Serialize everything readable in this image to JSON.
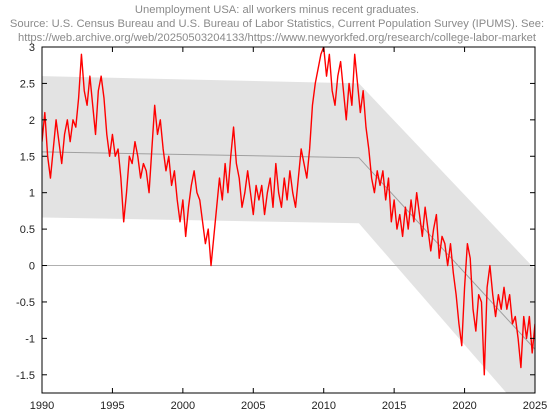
{
  "title": {
    "line1": "Unemployment USA: all workers minus recent graduates.",
    "line2": "Source: U.S. Census Bureau and U.S. Bureau of Labor Statistics, Current Population Survey (IPUMS). See:",
    "line3": "https://web.archive.org/web/20250503204133/https://www.newyorkfed.org/research/college-labor-market"
  },
  "colors": {
    "series": "#ff0000",
    "trend": "#a0a0a0",
    "band": "#e3e3e3",
    "zero_line": "#b0b0b0",
    "axis": "#000000"
  },
  "chart_data": {
    "type": "line",
    "title": "Unemployment USA: all workers minus recent graduates.",
    "xlim": [
      1990,
      2025
    ],
    "ylim": [
      -1.75,
      3
    ],
    "x_ticks": [
      1990,
      1995,
      2000,
      2005,
      2010,
      2015,
      2020,
      2025
    ],
    "y_ticks": [
      -1.5,
      -1,
      -0.5,
      0,
      0.5,
      1,
      1.5,
      2,
      2.5,
      3
    ],
    "x_tick_labels": [
      "1990",
      "1995",
      "2000",
      "2005",
      "2010",
      "2015",
      "2020",
      "2025"
    ],
    "y_tick_labels": [
      "-1.5",
      "-1",
      "-0.5",
      "0",
      "0.5",
      "1",
      "1.5",
      "2",
      "2.5",
      "3"
    ],
    "grid": false,
    "series": [
      {
        "values": [
          [
            1990.0,
            1.7
          ],
          [
            1990.2,
            2.1
          ],
          [
            1990.4,
            1.5
          ],
          [
            1990.6,
            1.2
          ],
          [
            1990.8,
            1.6
          ],
          [
            1991.0,
            2.0
          ],
          [
            1991.2,
            1.7
          ],
          [
            1991.4,
            1.4
          ],
          [
            1991.6,
            1.8
          ],
          [
            1991.8,
            2.0
          ],
          [
            1992.0,
            1.7
          ],
          [
            1992.2,
            2.0
          ],
          [
            1992.4,
            1.9
          ],
          [
            1992.6,
            2.3
          ],
          [
            1992.8,
            2.9
          ],
          [
            1993.0,
            2.4
          ],
          [
            1993.2,
            2.2
          ],
          [
            1993.4,
            2.6
          ],
          [
            1993.6,
            2.2
          ],
          [
            1993.8,
            1.8
          ],
          [
            1994.0,
            2.4
          ],
          [
            1994.2,
            2.6
          ],
          [
            1994.4,
            2.3
          ],
          [
            1994.6,
            1.8
          ],
          [
            1994.8,
            1.5
          ],
          [
            1995.0,
            1.8
          ],
          [
            1995.2,
            1.5
          ],
          [
            1995.4,
            1.6
          ],
          [
            1995.6,
            1.2
          ],
          [
            1995.8,
            0.6
          ],
          [
            1996.0,
            1.0
          ],
          [
            1996.2,
            1.5
          ],
          [
            1996.4,
            1.4
          ],
          [
            1996.6,
            1.7
          ],
          [
            1996.8,
            1.5
          ],
          [
            1997.0,
            1.2
          ],
          [
            1997.2,
            1.4
          ],
          [
            1997.4,
            1.3
          ],
          [
            1997.6,
            1.0
          ],
          [
            1997.8,
            1.6
          ],
          [
            1998.0,
            2.2
          ],
          [
            1998.2,
            1.8
          ],
          [
            1998.4,
            2.0
          ],
          [
            1998.6,
            1.6
          ],
          [
            1998.8,
            1.3
          ],
          [
            1999.0,
            1.5
          ],
          [
            1999.2,
            1.1
          ],
          [
            1999.4,
            1.3
          ],
          [
            1999.6,
            0.9
          ],
          [
            1999.8,
            0.6
          ],
          [
            2000.0,
            0.9
          ],
          [
            2000.2,
            0.4
          ],
          [
            2000.4,
            0.8
          ],
          [
            2000.6,
            1.1
          ],
          [
            2000.8,
            1.3
          ],
          [
            2001.0,
            1.0
          ],
          [
            2001.2,
            0.9
          ],
          [
            2001.4,
            0.6
          ],
          [
            2001.6,
            0.3
          ],
          [
            2001.8,
            0.5
          ],
          [
            2002.0,
            0.0
          ],
          [
            2002.2,
            0.4
          ],
          [
            2002.4,
            0.8
          ],
          [
            2002.6,
            1.2
          ],
          [
            2002.8,
            0.9
          ],
          [
            2003.0,
            1.4
          ],
          [
            2003.2,
            1.0
          ],
          [
            2003.4,
            1.5
          ],
          [
            2003.6,
            1.9
          ],
          [
            2003.8,
            1.4
          ],
          [
            2004.0,
            1.2
          ],
          [
            2004.2,
            0.8
          ],
          [
            2004.4,
            1.0
          ],
          [
            2004.6,
            1.3
          ],
          [
            2004.8,
            1.0
          ],
          [
            2005.0,
            0.7
          ],
          [
            2005.2,
            1.1
          ],
          [
            2005.4,
            0.9
          ],
          [
            2005.6,
            1.1
          ],
          [
            2005.8,
            0.7
          ],
          [
            2006.0,
            1.0
          ],
          [
            2006.2,
            1.2
          ],
          [
            2006.4,
            0.8
          ],
          [
            2006.6,
            1.4
          ],
          [
            2006.8,
            1.0
          ],
          [
            2007.0,
            0.8
          ],
          [
            2007.2,
            1.2
          ],
          [
            2007.4,
            0.9
          ],
          [
            2007.6,
            1.3
          ],
          [
            2007.8,
            1.0
          ],
          [
            2008.0,
            0.8
          ],
          [
            2008.2,
            1.2
          ],
          [
            2008.4,
            1.6
          ],
          [
            2008.6,
            1.4
          ],
          [
            2008.8,
            1.2
          ],
          [
            2009.0,
            1.6
          ],
          [
            2009.2,
            2.2
          ],
          [
            2009.4,
            2.5
          ],
          [
            2009.6,
            2.7
          ],
          [
            2009.8,
            2.9
          ],
          [
            2010.0,
            3.0
          ],
          [
            2010.2,
            2.6
          ],
          [
            2010.4,
            2.9
          ],
          [
            2010.6,
            2.4
          ],
          [
            2010.8,
            2.2
          ],
          [
            2011.0,
            2.6
          ],
          [
            2011.2,
            2.8
          ],
          [
            2011.4,
            2.4
          ],
          [
            2011.6,
            2.0
          ],
          [
            2011.8,
            2.5
          ],
          [
            2012.0,
            2.2
          ],
          [
            2012.2,
            2.9
          ],
          [
            2012.4,
            2.5
          ],
          [
            2012.6,
            2.1
          ],
          [
            2012.8,
            2.4
          ],
          [
            2013.0,
            1.9
          ],
          [
            2013.2,
            1.6
          ],
          [
            2013.4,
            1.2
          ],
          [
            2013.6,
            1.0
          ],
          [
            2013.8,
            1.3
          ],
          [
            2014.0,
            1.1
          ],
          [
            2014.2,
            1.3
          ],
          [
            2014.4,
            0.9
          ],
          [
            2014.6,
            1.2
          ],
          [
            2014.8,
            0.6
          ],
          [
            2015.0,
            0.9
          ],
          [
            2015.2,
            0.5
          ],
          [
            2015.4,
            0.7
          ],
          [
            2015.6,
            0.4
          ],
          [
            2015.8,
            0.8
          ],
          [
            2016.0,
            0.5
          ],
          [
            2016.2,
            0.9
          ],
          [
            2016.4,
            0.6
          ],
          [
            2016.6,
            1.0
          ],
          [
            2016.8,
            0.7
          ],
          [
            2017.0,
            0.4
          ],
          [
            2017.2,
            0.8
          ],
          [
            2017.4,
            0.5
          ],
          [
            2017.6,
            0.2
          ],
          [
            2017.8,
            0.5
          ],
          [
            2018.0,
            0.7
          ],
          [
            2018.2,
            0.1
          ],
          [
            2018.4,
            0.4
          ],
          [
            2018.6,
            0.3
          ],
          [
            2018.8,
            0.0
          ],
          [
            2019.0,
            0.3
          ],
          [
            2019.2,
            -0.1
          ],
          [
            2019.4,
            -0.4
          ],
          [
            2019.6,
            -0.8
          ],
          [
            2019.8,
            -1.1
          ],
          [
            2020.0,
            -0.3
          ],
          [
            2020.2,
            0.3
          ],
          [
            2020.4,
            0.1
          ],
          [
            2020.6,
            -0.6
          ],
          [
            2020.8,
            -0.9
          ],
          [
            2021.0,
            -0.4
          ],
          [
            2021.2,
            -0.5
          ],
          [
            2021.4,
            -1.5
          ],
          [
            2021.6,
            -0.3
          ],
          [
            2021.8,
            0.0
          ],
          [
            2022.0,
            -0.4
          ],
          [
            2022.2,
            -0.7
          ],
          [
            2022.4,
            -0.4
          ],
          [
            2022.6,
            -0.6
          ],
          [
            2022.8,
            -0.3
          ],
          [
            2023.0,
            -0.6
          ],
          [
            2023.2,
            -0.4
          ],
          [
            2023.4,
            -0.8
          ],
          [
            2023.6,
            -0.7
          ],
          [
            2023.8,
            -1.0
          ],
          [
            2024.0,
            -1.4
          ],
          [
            2024.2,
            -0.7
          ],
          [
            2024.4,
            -1.0
          ],
          [
            2024.6,
            -0.7
          ],
          [
            2024.8,
            -1.2
          ],
          [
            2025.0,
            -0.8
          ]
        ]
      },
      {
        "values": [
          [
            1990,
            1.56
          ],
          [
            2012.5,
            1.48
          ],
          [
            2025,
            -1.15
          ]
        ]
      }
    ],
    "band": {
      "upper": [
        [
          1990,
          2.6
        ],
        [
          2012.5,
          2.5
        ],
        [
          2025,
          -0.05
        ]
      ],
      "lower": [
        [
          1990,
          0.66
        ],
        [
          2012.5,
          0.58
        ],
        [
          2025,
          -2.2
        ]
      ]
    },
    "reference_line": 0
  }
}
